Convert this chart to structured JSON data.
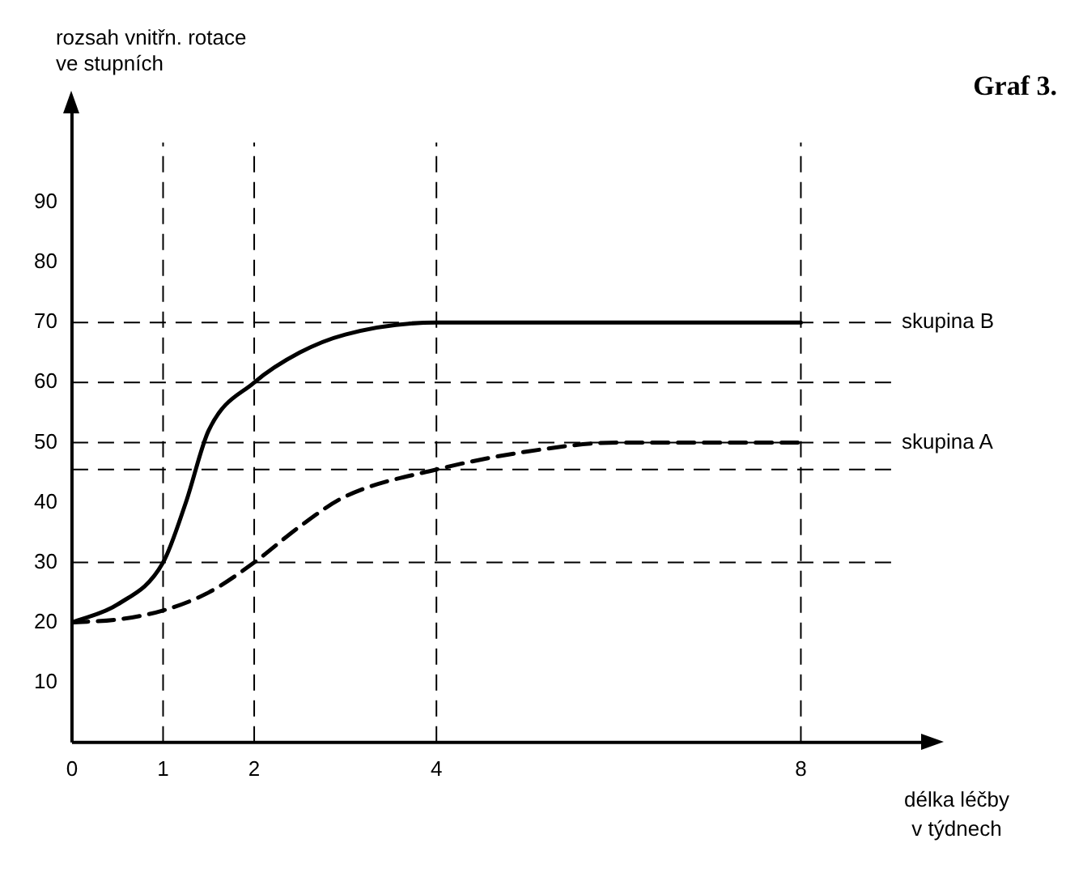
{
  "chart_data": {
    "type": "line",
    "title": "Graf 3.",
    "ylabel": "rozsah vnitřn. rotace ve stupních",
    "xlabel": "délka léčby v týdnech",
    "xlim": [
      0,
      9
    ],
    "xticks": [
      0,
      1,
      2,
      4,
      8
    ],
    "ylim": [
      0,
      100
    ],
    "yticks": [
      10,
      20,
      30,
      40,
      50,
      60,
      70,
      80,
      90
    ],
    "grid": false,
    "legend": false,
    "marker": "none",
    "series": [
      {
        "name": "skupina B",
        "color": "#000000",
        "line_style": "solid",
        "x": [
          0,
          0.5,
          1,
          1.25,
          1.5,
          2,
          2.5,
          3,
          4,
          5,
          8
        ],
        "values": [
          20,
          23,
          30,
          40,
          52,
          60,
          65,
          68,
          70,
          70,
          70
        ]
      },
      {
        "name": "skupina A",
        "color": "#000000",
        "line_style": "dashed",
        "x": [
          0,
          0.5,
          1,
          1.5,
          2,
          2.5,
          3,
          4,
          5,
          6,
          8
        ],
        "values": [
          20,
          20.5,
          22,
          25,
          30,
          36,
          41,
          45.5,
          48.5,
          50,
          50
        ]
      }
    ],
    "ref_lines": [
      {
        "axis": "y",
        "value": 70,
        "line_style": "dashed"
      },
      {
        "axis": "y",
        "value": 60,
        "line_style": "dashed"
      },
      {
        "axis": "y",
        "value": 50,
        "line_style": "dashed"
      },
      {
        "axis": "y",
        "value": 45.5,
        "line_style": "dashed"
      },
      {
        "axis": "y",
        "value": 30,
        "line_style": "dashed"
      },
      {
        "axis": "x",
        "value": 1,
        "line_style": "dashed"
      },
      {
        "axis": "x",
        "value": 2,
        "line_style": "dashed"
      },
      {
        "axis": "x",
        "value": 4,
        "line_style": "dashed"
      },
      {
        "axis": "x",
        "value": 8,
        "line_style": "dashed"
      }
    ]
  }
}
